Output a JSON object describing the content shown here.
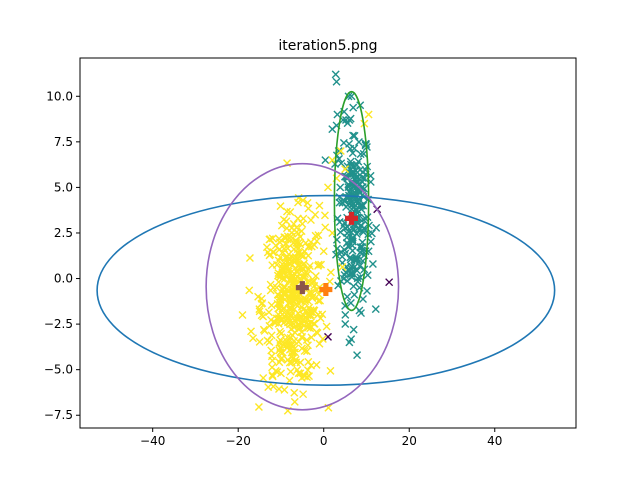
{
  "chart_data": {
    "type": "scatter",
    "title": "iteration5.png",
    "xlabel": "",
    "ylabel": "",
    "xlim": [
      -57,
      59
    ],
    "ylim": [
      -8.2,
      12.1
    ],
    "x_ticks": [
      -40,
      -20,
      0,
      20,
      40
    ],
    "x_tick_labels": [
      "−40",
      "−20",
      "0",
      "20",
      "40"
    ],
    "y_ticks": [
      -7.5,
      -5.0,
      -2.5,
      0.0,
      2.5,
      5.0,
      7.5,
      10.0
    ],
    "y_tick_labels": [
      "−7.5",
      "−5.0",
      "−2.5",
      "0.0",
      "2.5",
      "5.0",
      "7.5",
      "10.0"
    ],
    "grid": false,
    "legend": "none",
    "colors": {
      "purple_points": "#440154",
      "teal_points": "#21918c",
      "yellow_points": "#fde725",
      "ellipse_blue": "#1f77b4",
      "ellipse_green": "#2ca02c",
      "ellipse_purple": "#9467bd",
      "center_brown": "#8c564b",
      "center_orange": "#ff7f0e",
      "center_red": "#d62728"
    },
    "series": [
      {
        "color": "#440154",
        "marker": "x",
        "points": [
          [
            12.5,
            3.8
          ],
          [
            15.3,
            -0.2
          ],
          [
            1.0,
            -3.2
          ]
        ]
      },
      {
        "color": "#21918c",
        "marker": "x",
        "cluster": {
          "cx": 7.0,
          "cy": 3.5,
          "sx": 1.9,
          "sy": 2.6,
          "n": 230
        },
        "points": [
          [
            2.8,
            11.2
          ],
          [
            3.0,
            10.8
          ],
          [
            6.5,
            10.0
          ],
          [
            4.5,
            8.7
          ],
          [
            6.0,
            8.7
          ],
          [
            3.2,
            9.0
          ],
          [
            3.0,
            8.4
          ],
          [
            5.2,
            8.7
          ],
          [
            2.0,
            8.2
          ],
          [
            3.5,
            7.0
          ],
          [
            9.5,
            5.5
          ],
          [
            11.0,
            5.3
          ],
          [
            10.5,
            1.5
          ],
          [
            11.5,
            0.8
          ],
          [
            9.5,
            0.5
          ],
          [
            5.5,
            -1.0
          ],
          [
            5.0,
            -1.5
          ],
          [
            7.0,
            -2.8
          ],
          [
            6.0,
            -3.5
          ],
          [
            7.8,
            -4.2
          ]
        ]
      },
      {
        "color": "#fde725",
        "marker": "x",
        "cluster": {
          "cx": -7.0,
          "cy": -1.2,
          "sx": 3.6,
          "sy": 2.3,
          "n": 420
        },
        "points": [
          [
            10.5,
            9.0
          ],
          [
            9.5,
            8.5
          ],
          [
            -14,
            -2.8
          ],
          [
            -17,
            -2.9
          ],
          [
            -12,
            -4.5
          ],
          [
            -10,
            -5.2
          ],
          [
            -8,
            -5.6
          ],
          [
            -12,
            -5.3
          ],
          [
            -5,
            3.0
          ],
          [
            -7,
            3.0
          ],
          [
            -1,
            4.0
          ],
          [
            -2,
            3.5
          ],
          [
            1,
            5.0
          ],
          [
            3,
            5.5
          ],
          [
            2,
            6.5
          ],
          [
            4,
            7.0
          ],
          [
            5,
            6.0
          ],
          [
            -3,
            2.0
          ],
          [
            0,
            1.5
          ],
          [
            2,
            2.5
          ],
          [
            -19,
            -2.0
          ],
          [
            -15,
            -1.8
          ],
          [
            -11,
            -0.5
          ],
          [
            -10,
            -1.0
          ]
        ]
      }
    ],
    "ellipses": [
      {
        "color": "#1f77b4",
        "cx": 0.5,
        "cy": -0.65,
        "rx": 53.5,
        "ry": 5.2
      },
      {
        "color": "#2ca02c",
        "cx": 6.5,
        "cy": 4.25,
        "rx": 4.0,
        "ry": 6.0
      },
      {
        "color": "#9467bd",
        "cx": -5.0,
        "cy": -0.45,
        "rx": 22.5,
        "ry": 6.75
      }
    ],
    "centers": [
      {
        "color": "#8c564b",
        "x": -5.0,
        "y": -0.5
      },
      {
        "color": "#ff7f0e",
        "x": 0.5,
        "y": -0.6
      },
      {
        "color": "#d62728",
        "x": 6.5,
        "y": 3.3
      }
    ]
  }
}
